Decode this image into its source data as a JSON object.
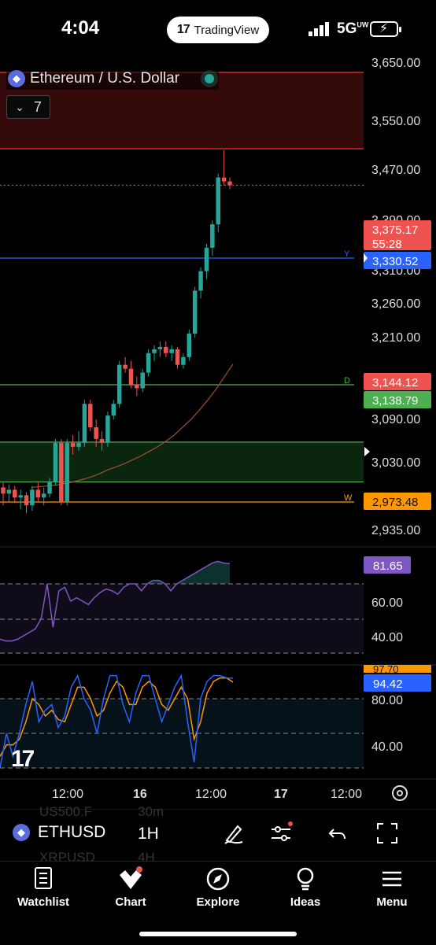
{
  "status_bar": {
    "time": "4:04",
    "app_pill": "TradingView",
    "network": "5G",
    "network_sup": "UW"
  },
  "header": {
    "symbol_title": "Ethereum / U.S. Dollar",
    "collapse_count": "7"
  },
  "chart_data": {
    "type": "candlestick",
    "interval": "1H",
    "price_axis_ticks": [
      "3,650.00",
      "3,550.00",
      "3,470.00",
      "3,390.00",
      "3,310.00",
      "3,260.00",
      "3,210.00",
      "3,090.00",
      "3,030.00",
      "2,935.00"
    ],
    "time_axis_ticks": [
      "12:00",
      "16",
      "12:00",
      "17",
      "12:00"
    ],
    "candles": [
      [
        2988,
        2995,
        2965,
        2980
      ],
      [
        2980,
        2992,
        2970,
        2985
      ],
      [
        2985,
        2990,
        2968,
        2975
      ],
      [
        2975,
        2985,
        2960,
        2978
      ],
      [
        2978,
        2982,
        2955,
        2965
      ],
      [
        2965,
        2990,
        2958,
        2985
      ],
      [
        2985,
        2995,
        2970,
        2975
      ],
      [
        2975,
        2988,
        2965,
        2980
      ],
      [
        2980,
        3000,
        2975,
        2995
      ],
      [
        2995,
        3050,
        2990,
        3045
      ],
      [
        3045,
        3050,
        2965,
        2970
      ],
      [
        2970,
        3050,
        2965,
        3045
      ],
      [
        3045,
        3055,
        3030,
        3040
      ],
      [
        3040,
        3060,
        3035,
        3045
      ],
      [
        3045,
        3100,
        3040,
        3095
      ],
      [
        3095,
        3100,
        3060,
        3065
      ],
      [
        3065,
        3075,
        3040,
        3050
      ],
      [
        3050,
        3060,
        3035,
        3045
      ],
      [
        3045,
        3085,
        3040,
        3080
      ],
      [
        3080,
        3100,
        3075,
        3095
      ],
      [
        3095,
        3150,
        3090,
        3145
      ],
      [
        3145,
        3155,
        3135,
        3140
      ],
      [
        3140,
        3150,
        3115,
        3120
      ],
      [
        3120,
        3130,
        3105,
        3115
      ],
      [
        3115,
        3140,
        3110,
        3135
      ],
      [
        3135,
        3165,
        3130,
        3160
      ],
      [
        3160,
        3170,
        3150,
        3165
      ],
      [
        3165,
        3175,
        3155,
        3168
      ],
      [
        3168,
        3175,
        3155,
        3160
      ],
      [
        3160,
        3170,
        3150,
        3165
      ],
      [
        3165,
        3168,
        3140,
        3145
      ],
      [
        3145,
        3160,
        3140,
        3155
      ],
      [
        3155,
        3190,
        3150,
        3185
      ],
      [
        3185,
        3245,
        3180,
        3240
      ],
      [
        3240,
        3270,
        3230,
        3265
      ],
      [
        3265,
        3300,
        3255,
        3295
      ],
      [
        3295,
        3330,
        3285,
        3325
      ],
      [
        3325,
        3390,
        3315,
        3385
      ],
      [
        3385,
        3420,
        3375,
        3380
      ],
      [
        3380,
        3385,
        3370,
        3375.17
      ]
    ],
    "last_price": "3,375.17",
    "countdown": "55:28",
    "levels": [
      {
        "label": "Y",
        "value": "3,330.52",
        "color": "#2962ff"
      },
      {
        "label": "D",
        "value": "3,144.12",
        "color": "#4caf50"
      },
      {
        "label": "W",
        "value": "2,973.48",
        "color": "#ff9800"
      }
    ],
    "ma_value": "3,138.79",
    "zones": [
      {
        "from": 3505,
        "to": 3650,
        "kind": "supply"
      },
      {
        "from": 2995,
        "to": 3046,
        "kind": "demand"
      }
    ],
    "moving_average": [
      2988,
      2989,
      2990,
      2991,
      2993,
      2995,
      2998,
      3001,
      3005,
      3010,
      3014,
      3018,
      3023,
      3028,
      3034,
      3040,
      3047,
      3055,
      3065,
      3075,
      3087,
      3100,
      3114,
      3130,
      3146
    ],
    "rsi": {
      "value": "81.65",
      "ticks": [
        "60.00",
        "40.00"
      ],
      "values": [
        38,
        37,
        37,
        38,
        40,
        42,
        44,
        50,
        70,
        45,
        66,
        68,
        60,
        62,
        60,
        58,
        62,
        65,
        67,
        66,
        64,
        68,
        70,
        70,
        66,
        70,
        72,
        72,
        70,
        66,
        70,
        72,
        74,
        76,
        78,
        80,
        82,
        83,
        82,
        81.65
      ]
    },
    "stochastic": {
      "k_value": "97.70",
      "d_value": "94.42",
      "ticks": [
        "80.00",
        "40.00"
      ],
      "k": [
        20,
        50,
        30,
        50,
        75,
        95,
        60,
        70,
        75,
        55,
        65,
        90,
        100,
        80,
        70,
        50,
        80,
        100,
        100,
        75,
        60,
        85,
        100,
        100,
        80,
        60,
        75,
        90,
        100,
        60,
        25,
        80,
        95,
        100,
        100,
        98,
        97.7
      ],
      "d": [
        30,
        40,
        40,
        45,
        60,
        80,
        75,
        65,
        70,
        62,
        60,
        75,
        90,
        90,
        80,
        65,
        70,
        85,
        95,
        90,
        75,
        75,
        90,
        95,
        90,
        75,
        70,
        80,
        90,
        80,
        45,
        60,
        85,
        95,
        98,
        98,
        94.42
      ]
    }
  },
  "toolbar": {
    "ticker": "ETHUSD",
    "interval": "1H",
    "ghost_tickers": [
      "US500.F",
      "30m",
      "XRPUSD",
      "4H"
    ]
  },
  "tabs": [
    {
      "label": "Watchlist",
      "icon": "list-book-icon"
    },
    {
      "label": "Chart",
      "icon": "chart-icon"
    },
    {
      "label": "Explore",
      "icon": "compass-icon"
    },
    {
      "label": "Ideas",
      "icon": "lightbulb-icon"
    },
    {
      "label": "Menu",
      "icon": "hamburger-icon"
    }
  ],
  "colors": {
    "up": "#26a69a",
    "down": "#ef5350",
    "rsi_line": "#7e57c2",
    "stoch_k": "#2962ff",
    "stoch_d": "#ff9800"
  }
}
